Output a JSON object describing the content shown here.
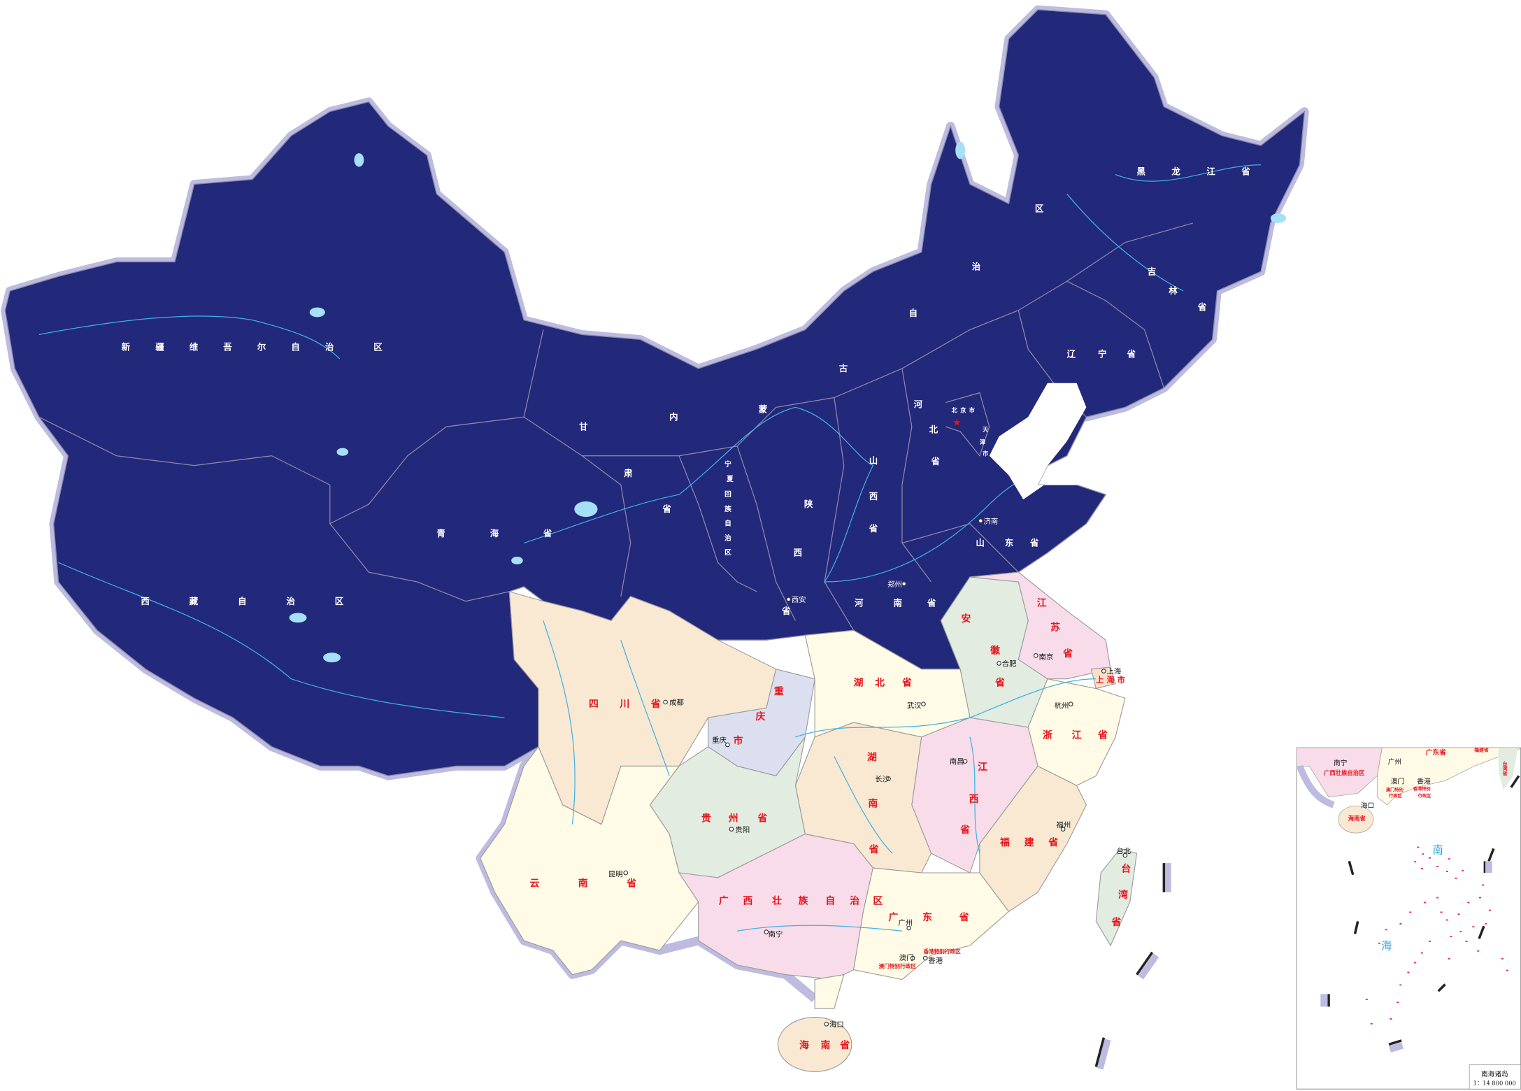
{
  "map": {
    "colors": {
      "north_fill": "#22287a",
      "halo": "#bdbbe0",
      "peach": "#f9e9d2",
      "cream": "#fffbe6",
      "pink": "#f8dcea",
      "green": "#e2ece1",
      "lavender": "#dcdff0",
      "label_red": "#e8131b",
      "river": "#3fb2e6"
    },
    "capital_icon": "red-star",
    "provinces": {
      "xinjiang": "新疆维吾尔自治区",
      "xizang": "西藏自治区",
      "qinghai": "青海省",
      "gansu": "甘肃省",
      "neimenggu": "内蒙古自治区",
      "heilongjiang": "黑龙江省",
      "jilin": "吉林省",
      "liaoning": "辽宁省",
      "beijing": "北京市",
      "tianjin": "天津市",
      "hebei": "河北省",
      "shanxi": "山西省",
      "ningxia": "宁夏回族自治区",
      "shaanxi": "陕西省",
      "shandong": "山东省",
      "henan": "河南省",
      "jiangsu": "江苏省",
      "anhui": "安徽省",
      "shanghai": "上海市",
      "zhejiang": "浙江省",
      "hubei": "湖北省",
      "sichuan": "四川省",
      "chongqing": "重庆市",
      "hunan": "湖南省",
      "jiangxi": "江西省",
      "fujian": "福建省",
      "guizhou": "贵州省",
      "yunnan": "云南省",
      "guangxi": "广西壮族自治区",
      "guangdong": "广东省",
      "taiwan": "台湾省",
      "hainan": "海南省",
      "hongkong": "香港特别行政区",
      "macau": "澳门特别行政区"
    },
    "cities": {
      "chengdu": "成都",
      "chongqing": "重庆",
      "guiyang": "贵阳",
      "kunming": "昆明",
      "nanning": "南宁",
      "guangzhou": "广州",
      "macau": "澳门",
      "hongkong": "香港",
      "haikou": "海口",
      "changsha": "长沙",
      "wuhan": "武汉",
      "nanchang": "南昌",
      "fuzhou": "福州",
      "taibei": "台北",
      "hangzhou": "杭州",
      "hefei": "合肥",
      "nanjing": "南京",
      "shanghai": "上海",
      "jinan": "济南",
      "zhengzhou": "郑州",
      "xian": "西安"
    },
    "inset": {
      "title": "南海诸岛",
      "scale": "1：14 800 000",
      "sea_char_1": "南",
      "sea_char_2": "海",
      "labels": {
        "nanning": "南宁",
        "guangxi": "广西壮族自治区",
        "guangdong": "广东省",
        "guangzhou": "广州",
        "macau": "澳门",
        "hongkong": "香港",
        "macau_sar_1": "澳门特别",
        "macau_sar_2": "行政区",
        "hk_sar_1": "香港特别",
        "hk_sar_2": "行政区",
        "haikou": "海口",
        "hainan": "海南省",
        "fujian": "福建省",
        "taiwan": "台湾省"
      }
    }
  }
}
